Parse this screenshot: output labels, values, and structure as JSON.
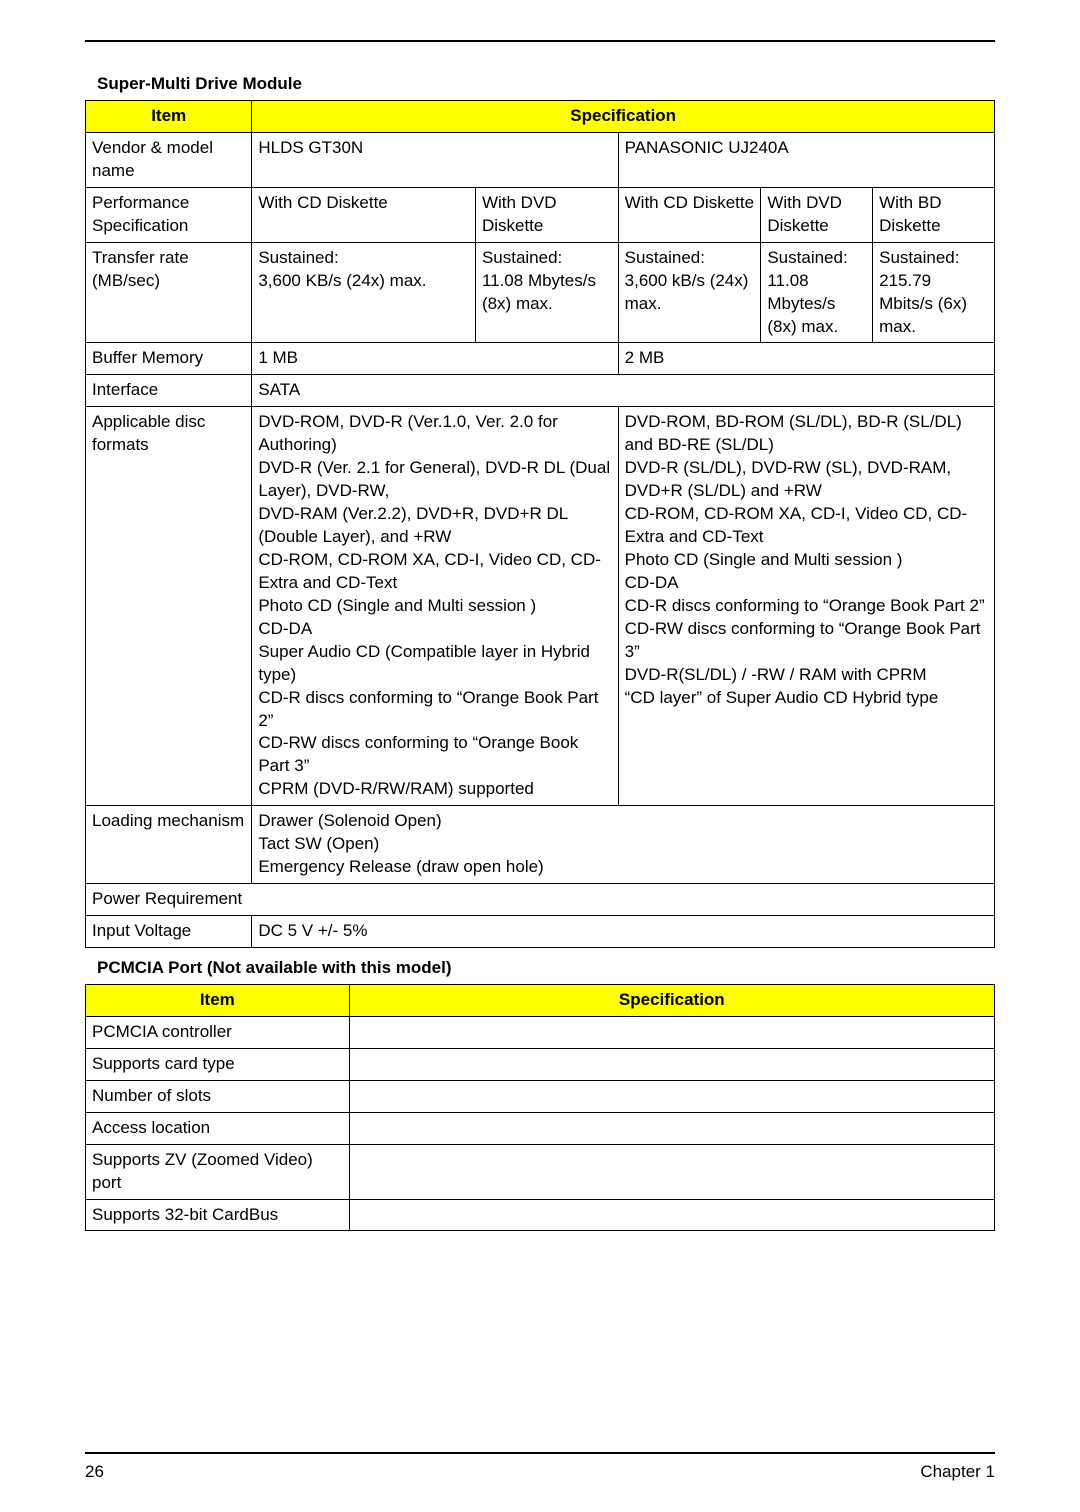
{
  "page": {
    "number": "26",
    "chapter": "Chapter 1"
  },
  "section1": {
    "title": "Super-Multi Drive Module",
    "header_item": "Item",
    "header_spec": "Specification",
    "rows": {
      "vendor_label": "Vendor & model name",
      "vendor_hlds": "HLDS GT30N",
      "vendor_panasonic": "PANASONIC UJ240A",
      "perf_label": "Performance Specification",
      "perf_c1": "With CD Diskette",
      "perf_c2": "With DVD Diskette",
      "perf_c3": "With CD Diskette",
      "perf_c4": "With DVD Diskette",
      "perf_c5": "With BD Diskette",
      "tr_label": "Transfer rate (MB/sec)",
      "tr_c1": "Sustained:\n3,600 KB/s (24x) max.",
      "tr_c2": "Sustained:\n11.08 Mbytes/s (8x) max.",
      "tr_c3": "Sustained:\n3,600 kB/s (24x) max.",
      "tr_c4": "Sustained:\n11.08 Mbytes/s (8x) max.",
      "tr_c5": "Sustained:\n215.79 Mbits/s (6x) max.",
      "buf_label": "Buffer Memory",
      "buf_c1": "1 MB",
      "buf_c2": "2 MB",
      "iface_label": "Interface",
      "iface_val": "SATA",
      "fmt_label": "Applicable disc formats",
      "fmt_hlds": "DVD-ROM, DVD-R (Ver.1.0, Ver. 2.0 for Authoring)\nDVD-R (Ver. 2.1 for General), DVD-R DL (Dual Layer), DVD-RW,\nDVD-RAM (Ver.2.2), DVD+R, DVD+R DL (Double Layer), and +RW\nCD-ROM, CD-ROM XA, CD-I, Video CD, CD-Extra and CD-Text\nPhoto CD (Single and Multi session )\nCD-DA\nSuper Audio CD (Compatible layer in Hybrid type)\nCD-R discs conforming to “Orange Book Part 2”\nCD-RW discs conforming to “Orange Book Part 3”\nCPRM (DVD-R/RW/RAM) supported",
      "fmt_pan": "DVD-ROM, BD-ROM (SL/DL), BD-R (SL/DL) and BD-RE (SL/DL)\nDVD-R (SL/DL), DVD-RW (SL), DVD-RAM, DVD+R (SL/DL) and +RW\nCD-ROM, CD-ROM XA, CD-I, Video CD, CD-Extra and CD-Text\nPhoto CD (Single and Multi session )\nCD-DA\nCD-R discs conforming to “Orange Book Part 2”\nCD-RW discs conforming to “Orange Book Part 3”\nDVD-R(SL/DL) / -RW / RAM with CPRM\n “CD layer” of Super Audio CD Hybrid type",
      "load_label": "Loading mechanism",
      "load_val": "Drawer (Solenoid Open)\nTact SW (Open)\nEmergency Release (draw open hole)",
      "pwr_label": "Power Requirement",
      "iv_label": "Input Voltage",
      "iv_val": "DC 5 V +/- 5%"
    }
  },
  "section2": {
    "title": "PCMCIA Port (Not available with this model)",
    "header_item": "Item",
    "header_spec": "Specification",
    "rows": [
      "PCMCIA controller",
      "Supports card type",
      "Number of slots",
      "Access location",
      "Supports ZV (Zoomed Video) port",
      "Supports 32-bit CardBus"
    ]
  },
  "colors": {
    "header_bg": "#ffff00",
    "border": "#000000"
  }
}
